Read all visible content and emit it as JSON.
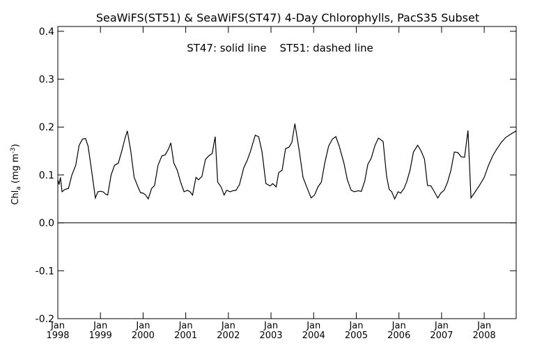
{
  "chart_data": {
    "type": "line",
    "title": "SeaWiFS(ST51) & SeaWiFS(ST47) 4-Day Chlorophylls, PacS35 Subset",
    "annotation": "ST47: solid line    ST51: dashed line",
    "ylabel": "Chl",
    "ylabel_sub": "a",
    "ylabel_units_open": " (mg m",
    "ylabel_units_sup": "-3",
    "ylabel_units_close": ")",
    "xlabel": "",
    "xlim": [
      1998.0,
      2008.75
    ],
    "ylim": [
      -0.2,
      0.41
    ],
    "y_ticks": [
      -0.2,
      -0.1,
      0.0,
      0.1,
      0.2,
      0.3,
      0.4
    ],
    "y_tick_labels": [
      "-0.2",
      "-0.1",
      "0.0",
      "0.1",
      "0.2",
      "0.3",
      "0.4"
    ],
    "x_ticks": [
      1998,
      1999,
      2000,
      2001,
      2002,
      2003,
      2004,
      2005,
      2006,
      2007,
      2008
    ],
    "x_tick_labels": [
      [
        "Jan",
        "1998"
      ],
      [
        "Jan",
        "1999"
      ],
      [
        "Jan",
        "2000"
      ],
      [
        "Jan",
        "2001"
      ],
      [
        "Jan",
        "2002"
      ],
      [
        "Jan",
        "2003"
      ],
      [
        "Jan",
        "2004"
      ],
      [
        "Jan",
        "2005"
      ],
      [
        "Jan",
        "2006"
      ],
      [
        "Jan",
        "2007"
      ],
      [
        "Jan",
        "2008"
      ]
    ],
    "zero_line": 0.0,
    "series": [
      {
        "name": "ST47",
        "style": "solid",
        "points": [
          [
            1998.0,
            0.09
          ],
          [
            1998.03,
            0.08
          ],
          [
            1998.06,
            0.095
          ],
          [
            1998.1,
            0.065
          ],
          [
            1998.17,
            0.07
          ],
          [
            1998.25,
            0.072
          ],
          [
            1998.33,
            0.1
          ],
          [
            1998.42,
            0.12
          ],
          [
            1998.5,
            0.162
          ],
          [
            1998.58,
            0.175
          ],
          [
            1998.65,
            0.176
          ],
          [
            1998.71,
            0.16
          ],
          [
            1998.79,
            0.11
          ],
          [
            1998.88,
            0.052
          ],
          [
            1998.94,
            0.065
          ],
          [
            1999.0,
            0.066
          ],
          [
            1999.06,
            0.065
          ],
          [
            1999.12,
            0.06
          ],
          [
            1999.17,
            0.058
          ],
          [
            1999.25,
            0.1
          ],
          [
            1999.33,
            0.12
          ],
          [
            1999.42,
            0.125
          ],
          [
            1999.5,
            0.15
          ],
          [
            1999.58,
            0.178
          ],
          [
            1999.63,
            0.192
          ],
          [
            1999.71,
            0.15
          ],
          [
            1999.79,
            0.095
          ],
          [
            1999.88,
            0.075
          ],
          [
            1999.94,
            0.063
          ],
          [
            2000.0,
            0.062
          ],
          [
            2000.06,
            0.058
          ],
          [
            2000.12,
            0.05
          ],
          [
            2000.2,
            0.072
          ],
          [
            2000.27,
            0.078
          ],
          [
            2000.35,
            0.12
          ],
          [
            2000.44,
            0.14
          ],
          [
            2000.52,
            0.142
          ],
          [
            2000.6,
            0.155
          ],
          [
            2000.65,
            0.167
          ],
          [
            2000.72,
            0.125
          ],
          [
            2000.8,
            0.11
          ],
          [
            2000.88,
            0.085
          ],
          [
            2000.96,
            0.065
          ],
          [
            2001.04,
            0.068
          ],
          [
            2001.1,
            0.065
          ],
          [
            2001.16,
            0.058
          ],
          [
            2001.24,
            0.095
          ],
          [
            2001.3,
            0.09
          ],
          [
            2001.38,
            0.097
          ],
          [
            2001.46,
            0.132
          ],
          [
            2001.54,
            0.14
          ],
          [
            2001.62,
            0.145
          ],
          [
            2001.69,
            0.18
          ],
          [
            2001.75,
            0.085
          ],
          [
            2001.83,
            0.075
          ],
          [
            2001.9,
            0.058
          ],
          [
            2001.96,
            0.068
          ],
          [
            2002.04,
            0.065
          ],
          [
            2002.1,
            0.067
          ],
          [
            2002.18,
            0.068
          ],
          [
            2002.26,
            0.08
          ],
          [
            2002.36,
            0.115
          ],
          [
            2002.44,
            0.13
          ],
          [
            2002.52,
            0.15
          ],
          [
            2002.63,
            0.183
          ],
          [
            2002.71,
            0.18
          ],
          [
            2002.79,
            0.148
          ],
          [
            2002.88,
            0.082
          ],
          [
            2002.98,
            0.077
          ],
          [
            2003.04,
            0.082
          ],
          [
            2003.12,
            0.075
          ],
          [
            2003.18,
            0.105
          ],
          [
            2003.26,
            0.11
          ],
          [
            2003.34,
            0.155
          ],
          [
            2003.42,
            0.158
          ],
          [
            2003.49,
            0.168
          ],
          [
            2003.56,
            0.207
          ],
          [
            2003.65,
            0.158
          ],
          [
            2003.75,
            0.095
          ],
          [
            2003.85,
            0.072
          ],
          [
            2003.94,
            0.052
          ],
          [
            2004.02,
            0.058
          ],
          [
            2004.1,
            0.075
          ],
          [
            2004.18,
            0.085
          ],
          [
            2004.26,
            0.125
          ],
          [
            2004.35,
            0.16
          ],
          [
            2004.44,
            0.175
          ],
          [
            2004.52,
            0.18
          ],
          [
            2004.6,
            0.16
          ],
          [
            2004.71,
            0.125
          ],
          [
            2004.79,
            0.09
          ],
          [
            2004.88,
            0.068
          ],
          [
            2004.96,
            0.065
          ],
          [
            2005.04,
            0.067
          ],
          [
            2005.12,
            0.066
          ],
          [
            2005.2,
            0.088
          ],
          [
            2005.27,
            0.122
          ],
          [
            2005.35,
            0.135
          ],
          [
            2005.44,
            0.162
          ],
          [
            2005.52,
            0.177
          ],
          [
            2005.63,
            0.17
          ],
          [
            2005.71,
            0.098
          ],
          [
            2005.77,
            0.07
          ],
          [
            2005.83,
            0.065
          ],
          [
            2005.9,
            0.05
          ],
          [
            2005.98,
            0.065
          ],
          [
            2006.04,
            0.062
          ],
          [
            2006.12,
            0.072
          ],
          [
            2006.18,
            0.085
          ],
          [
            2006.26,
            0.11
          ],
          [
            2006.34,
            0.148
          ],
          [
            2006.44,
            0.162
          ],
          [
            2006.52,
            0.15
          ],
          [
            2006.6,
            0.133
          ],
          [
            2006.67,
            0.078
          ],
          [
            2006.75,
            0.077
          ],
          [
            2006.83,
            0.065
          ],
          [
            2006.91,
            0.052
          ],
          [
            2006.98,
            0.062
          ],
          [
            2007.06,
            0.068
          ],
          [
            2007.14,
            0.085
          ],
          [
            2007.22,
            0.11
          ],
          [
            2007.3,
            0.148
          ],
          [
            2007.38,
            0.147
          ],
          [
            2007.46,
            0.138
          ],
          [
            2007.54,
            0.137
          ],
          [
            2007.62,
            0.193
          ],
          [
            2007.69,
            0.052
          ],
          [
            2007.79,
            0.065
          ],
          [
            2007.9,
            0.08
          ],
          [
            2008.0,
            0.095
          ],
          [
            2008.1,
            0.12
          ],
          [
            2008.2,
            0.14
          ],
          [
            2008.3,
            0.155
          ],
          [
            2008.4,
            0.168
          ],
          [
            2008.5,
            0.178
          ],
          [
            2008.62,
            0.185
          ],
          [
            2008.75,
            0.192
          ]
        ]
      }
    ]
  }
}
